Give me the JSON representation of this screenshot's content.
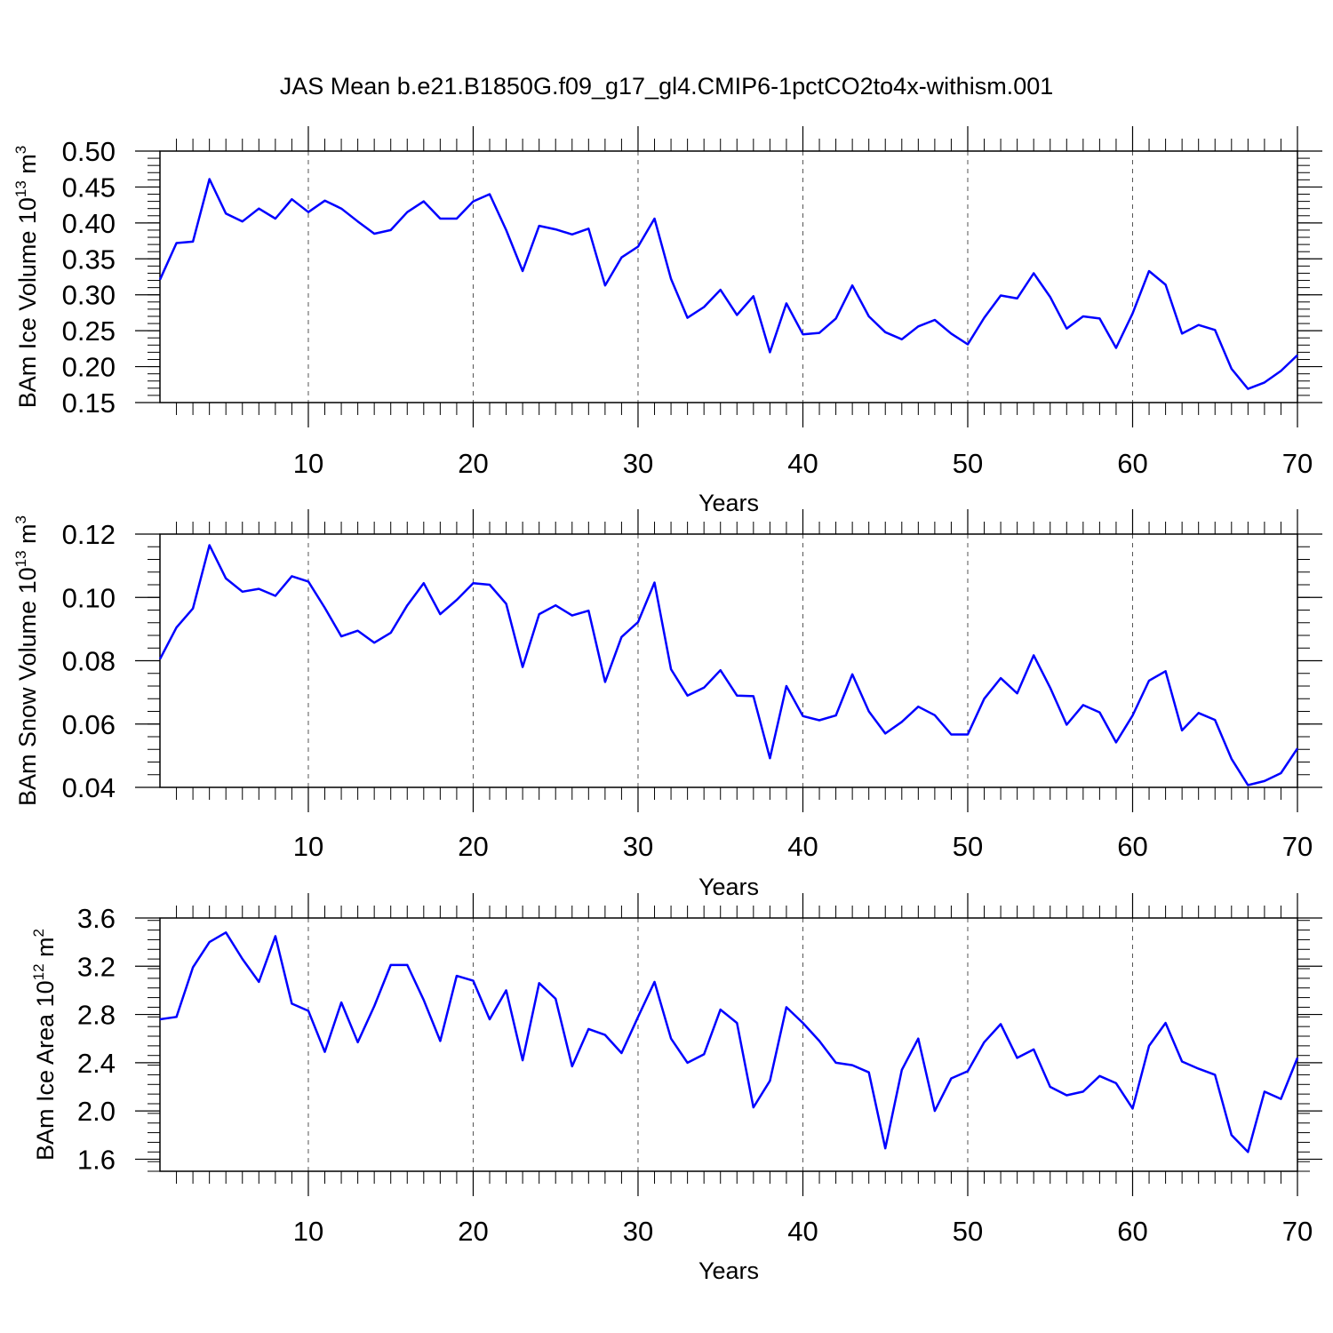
{
  "title": "JAS Mean b.e21.B1850G.f09_g17_gl4.CMIP6-1pctCO2to4x-withism.001",
  "line_color": "#0000ff",
  "chart_data": [
    {
      "type": "line",
      "xlabel": "Years",
      "ylabel_main": "BAm Ice Volume 10",
      "ylabel_exp": "13",
      "ylabel_unit": " m",
      "ylabel_unit_exp": "3",
      "xlim": [
        1,
        70
      ],
      "ylim": [
        0.15,
        0.5
      ],
      "xticks": [
        10,
        20,
        30,
        40,
        50,
        60,
        70
      ],
      "yticks": [
        "0.15",
        "0.20",
        "0.25",
        "0.30",
        "0.35",
        "0.40",
        "0.45",
        "0.50"
      ],
      "grid": "vertical-dashed",
      "series": [
        {
          "name": "BAm Ice Volume",
          "values": [
            0.321,
            0.372,
            0.374,
            0.461,
            0.413,
            0.402,
            0.42,
            0.406,
            0.433,
            0.415,
            0.431,
            0.42,
            0.402,
            0.385,
            0.39,
            0.415,
            0.43,
            0.406,
            0.406,
            0.43,
            0.44,
            0.39,
            0.333,
            0.396,
            0.391,
            0.384,
            0.392,
            0.313,
            0.352,
            0.367,
            0.406,
            0.322,
            0.268,
            0.283,
            0.307,
            0.272,
            0.298,
            0.22,
            0.288,
            0.245,
            0.247,
            0.267,
            0.313,
            0.27,
            0.248,
            0.238,
            0.256,
            0.265,
            0.246,
            0.231,
            0.268,
            0.299,
            0.295,
            0.33,
            0.297,
            0.253,
            0.27,
            0.267,
            0.226,
            0.274,
            0.333,
            0.314,
            0.246,
            0.258,
            0.251,
            0.197,
            0.169,
            0.178,
            0.194,
            0.216
          ]
        }
      ]
    },
    {
      "type": "line",
      "xlabel": "Years",
      "ylabel_main": "BAm Snow Volume 10",
      "ylabel_exp": "13",
      "ylabel_unit": " m",
      "ylabel_unit_exp": "3",
      "xlim": [
        1,
        70
      ],
      "ylim": [
        0.04,
        0.12
      ],
      "xticks": [
        10,
        20,
        30,
        40,
        50,
        60,
        70
      ],
      "yticks": [
        "0.04",
        "0.06",
        "0.08",
        "0.10",
        "0.12"
      ],
      "grid": "vertical-dashed",
      "series": [
        {
          "name": "BAm Snow Volume",
          "values": [
            0.0805,
            0.0905,
            0.0965,
            0.1165,
            0.106,
            0.1018,
            0.1027,
            0.1005,
            0.1067,
            0.105,
            0.0967,
            0.0877,
            0.0895,
            0.0857,
            0.0888,
            0.0975,
            0.1045,
            0.0947,
            0.0992,
            0.1045,
            0.104,
            0.098,
            0.078,
            0.0947,
            0.0975,
            0.0943,
            0.0958,
            0.0733,
            0.0875,
            0.0922,
            0.1047,
            0.0773,
            0.069,
            0.0715,
            0.077,
            0.069,
            0.0688,
            0.0492,
            0.072,
            0.0625,
            0.0612,
            0.0627,
            0.0757,
            0.064,
            0.057,
            0.0607,
            0.0655,
            0.0628,
            0.0567,
            0.0567,
            0.068,
            0.0745,
            0.0697,
            0.0817,
            0.0715,
            0.0598,
            0.066,
            0.0637,
            0.0542,
            0.0627,
            0.0737,
            0.0767,
            0.058,
            0.0635,
            0.0613,
            0.049,
            0.0407,
            0.042,
            0.0445,
            0.0523
          ]
        }
      ]
    },
    {
      "type": "line",
      "xlabel": "Years",
      "ylabel_main": "BAm Ice Area 10",
      "ylabel_exp": "12",
      "ylabel_unit": " m",
      "ylabel_unit_exp": "2",
      "xlim": [
        1,
        70
      ],
      "ylim": [
        1.5,
        3.6
      ],
      "xticks": [
        10,
        20,
        30,
        40,
        50,
        60,
        70
      ],
      "yticks": [
        "1.6",
        "2.0",
        "2.4",
        "2.8",
        "3.2",
        "3.6"
      ],
      "grid": "vertical-dashed",
      "series": [
        {
          "name": "BAm Ice Area",
          "values": [
            2.76,
            2.78,
            3.19,
            3.4,
            3.48,
            3.26,
            3.07,
            3.45,
            2.89,
            2.83,
            2.49,
            2.9,
            2.57,
            2.87,
            3.21,
            3.21,
            2.92,
            2.58,
            3.12,
            3.08,
            2.76,
            3.0,
            2.42,
            3.06,
            2.93,
            2.37,
            2.68,
            2.63,
            2.48,
            2.78,
            3.07,
            2.6,
            2.4,
            2.47,
            2.84,
            2.73,
            2.03,
            2.25,
            2.86,
            2.73,
            2.58,
            2.4,
            2.38,
            2.32,
            1.69,
            2.34,
            2.6,
            2.0,
            2.27,
            2.33,
            2.57,
            2.72,
            2.44,
            2.51,
            2.2,
            2.13,
            2.16,
            2.29,
            2.23,
            2.02,
            2.54,
            2.73,
            2.41,
            2.35,
            2.3,
            1.8,
            1.66,
            2.16,
            2.1,
            2.44
          ]
        }
      ]
    }
  ]
}
